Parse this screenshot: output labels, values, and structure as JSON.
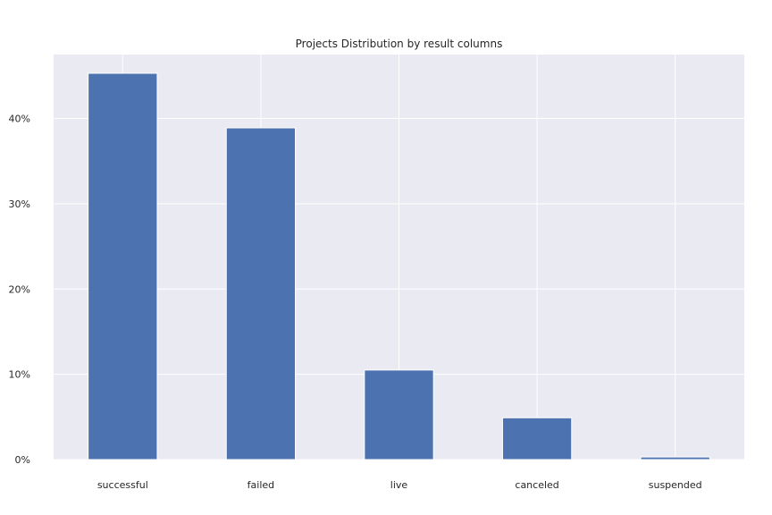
{
  "chart_data": {
    "type": "bar",
    "title": "Projects Distribution by result columns",
    "xlabel": "",
    "ylabel": "",
    "categories": [
      "successful",
      "failed",
      "live",
      "canceled",
      "suspended"
    ],
    "values": [
      45.3,
      38.9,
      10.5,
      4.9,
      0.3
    ],
    "ylim": [
      0,
      47.5
    ],
    "yticks": [
      0,
      10,
      20,
      30,
      40
    ],
    "ytick_labels": [
      "0%",
      "10%",
      "20%",
      "30%",
      "40%"
    ],
    "grid": true,
    "legend": "none",
    "colors": {
      "bar": "#4c72b0",
      "plot_background": "#eaeaf2",
      "grid": "#ffffff",
      "text": "#262626"
    }
  }
}
